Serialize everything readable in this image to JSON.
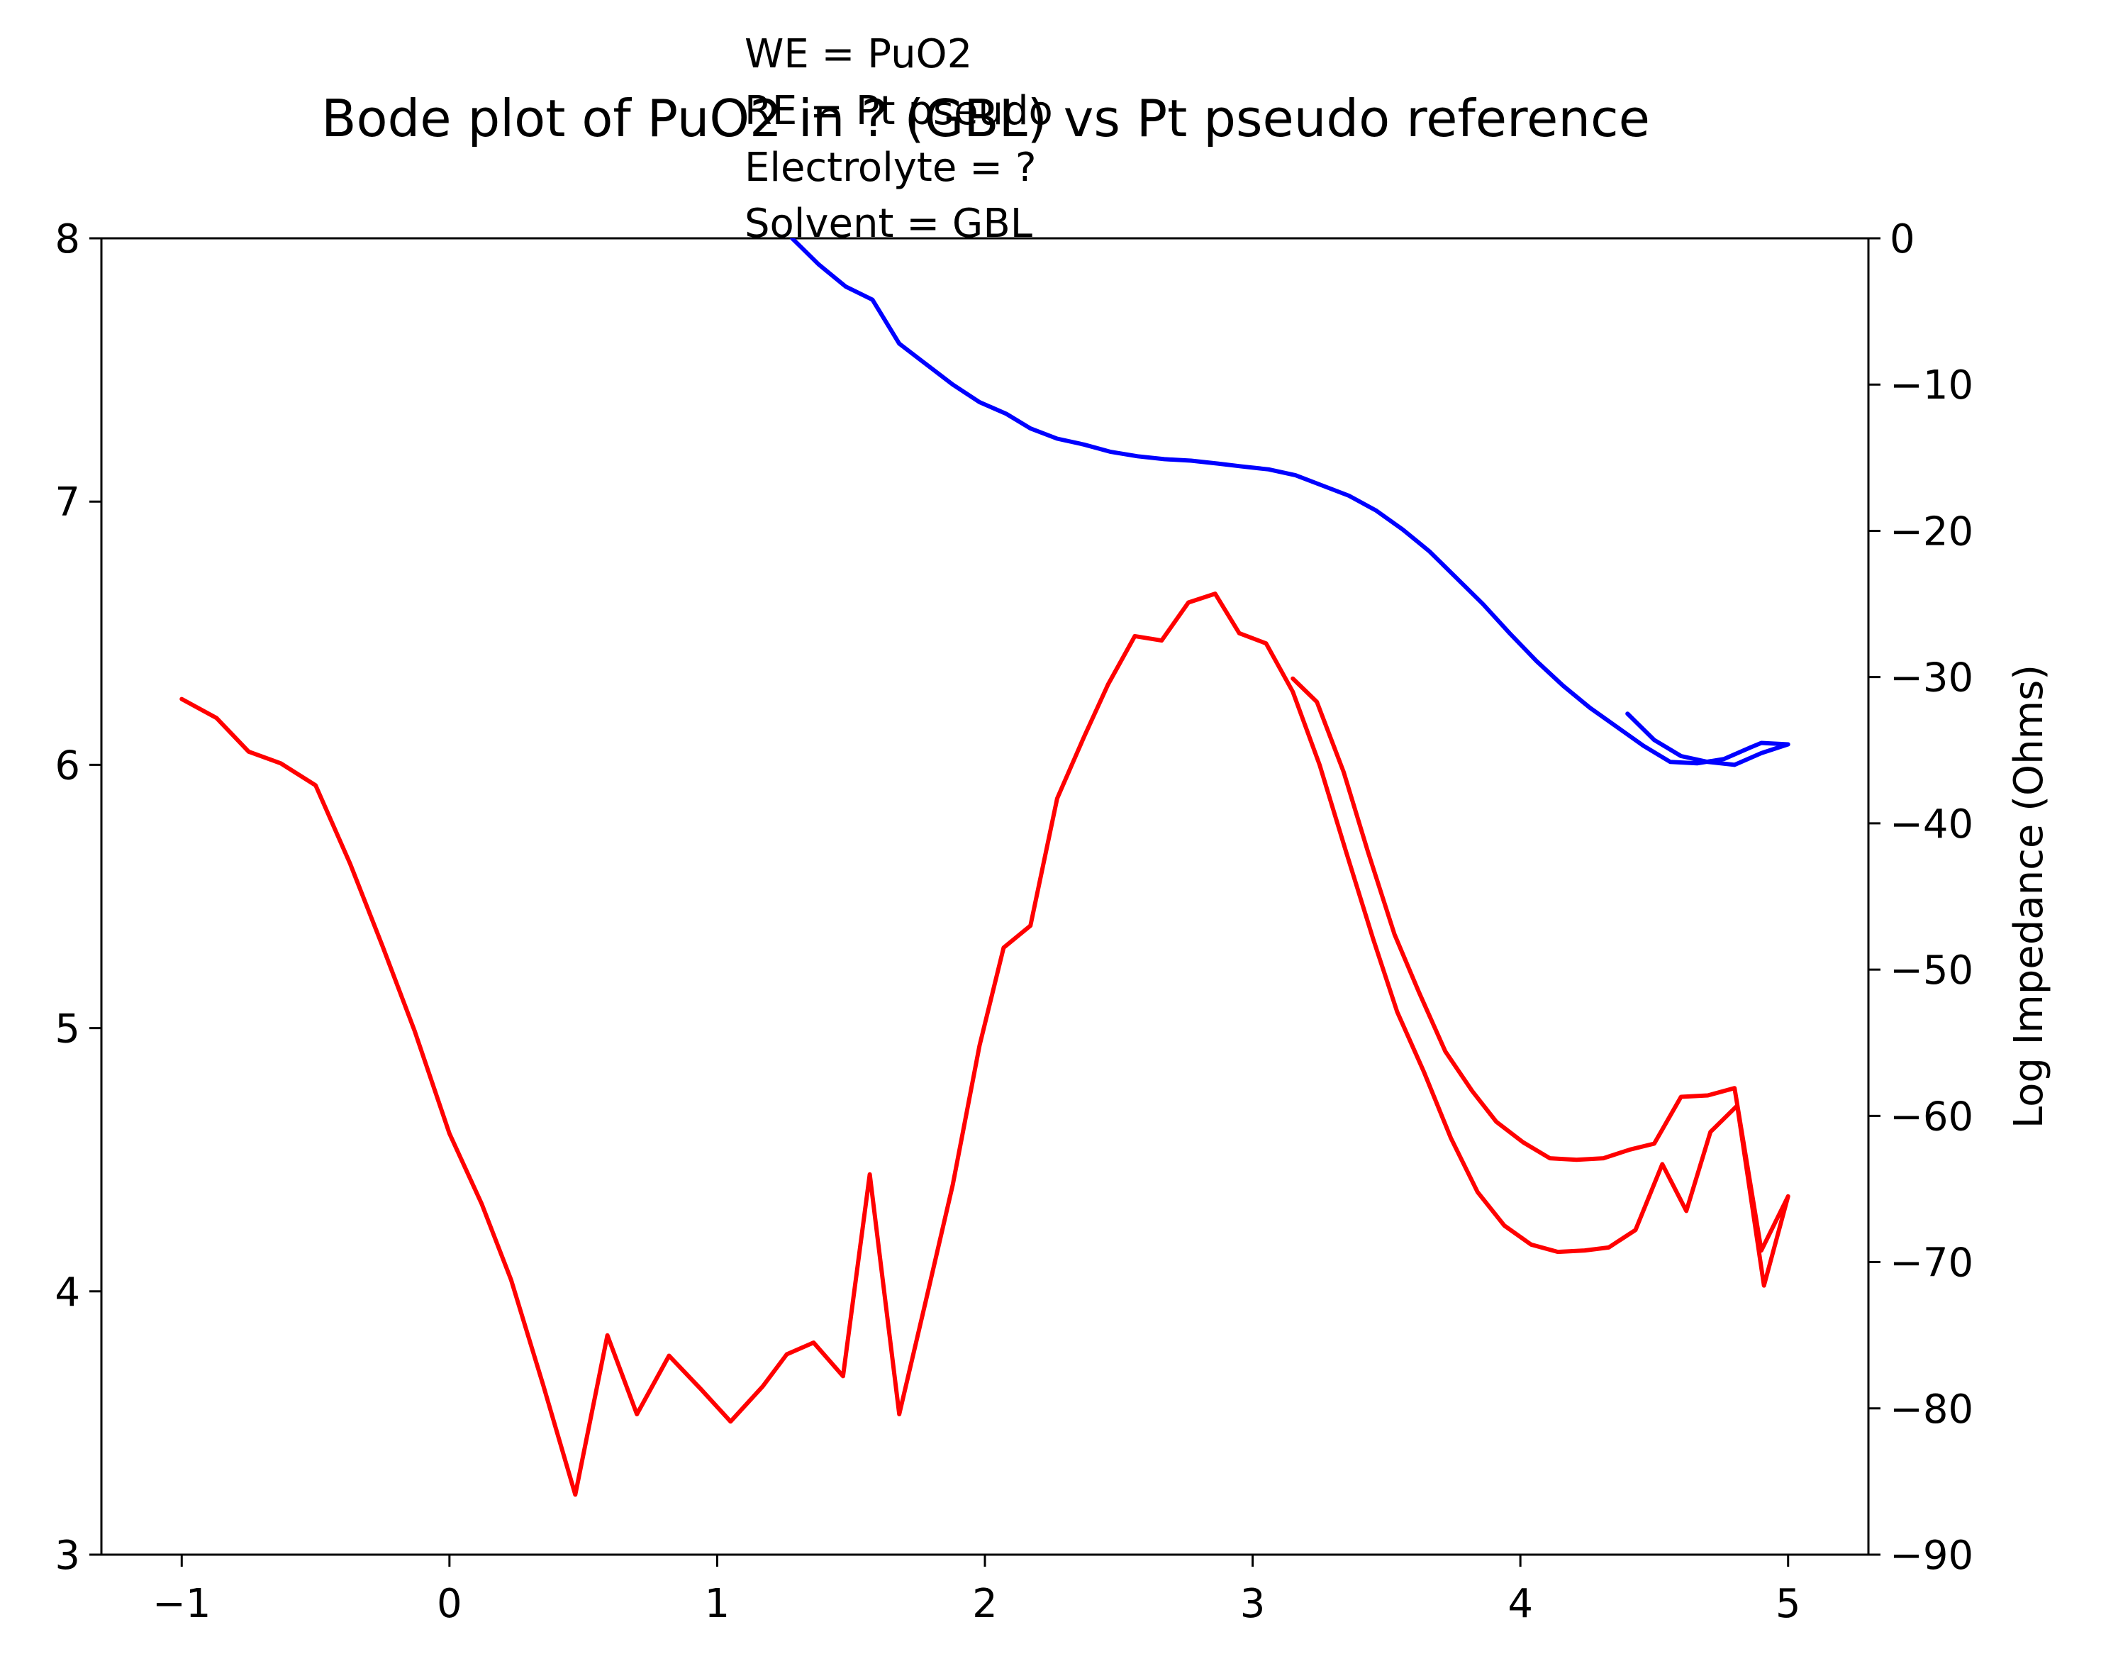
{
  "chart_data": {
    "type": "line",
    "title": "Bode plot of PuO2 in ? (GBL) vs Pt pseudo reference",
    "annotation": [
      "WE = PuO2",
      "RE = Pt pseudo",
      "Electrolyte = ?",
      "Solvent = GBL"
    ],
    "xlabel": "",
    "ylabel_left": "",
    "ylabel_right": "Log Impedance (Ohms)",
    "xlim": [
      -1.3,
      5.3
    ],
    "ylim_left": [
      3,
      8
    ],
    "ylim_right": [
      -90,
      0
    ],
    "x_ticks": [
      "−1",
      "0",
      "1",
      "2",
      "3",
      "4",
      "5"
    ],
    "y_left_ticks": [
      "3",
      "4",
      "5",
      "6",
      "7",
      "8"
    ],
    "y_right_ticks": [
      "−90",
      "−80",
      "−70",
      "−60",
      "−50",
      "−40",
      "−30",
      "−20",
      "−10",
      "0"
    ],
    "grid": false,
    "series": [
      {
        "axis": "right",
        "color": "#ff0000",
        "x": [
          -1.0,
          -0.87,
          -0.75,
          -0.63,
          -0.5,
          -0.37,
          -0.25,
          -0.13,
          0.0,
          0.12,
          0.23,
          0.35,
          0.47,
          0.59,
          0.7,
          0.82,
          0.94,
          1.05,
          1.17,
          1.26,
          1.36,
          1.47,
          1.57,
          1.68,
          1.78,
          1.88,
          1.98,
          2.07,
          2.17,
          2.27,
          2.37,
          2.46,
          2.56,
          2.66,
          2.76,
          2.86,
          2.95,
          3.05,
          3.15,
          3.25,
          3.35,
          3.45,
          3.54,
          3.64,
          3.74,
          3.84,
          3.94,
          4.04,
          4.14,
          4.24,
          4.33,
          4.43,
          4.53,
          4.62,
          4.71,
          4.81,
          4.91,
          5.0,
          4.9,
          4.8,
          4.7,
          4.6,
          4.5,
          4.41,
          4.31,
          4.21,
          4.11,
          4.01,
          3.91,
          3.82,
          3.72,
          3.62,
          3.53,
          3.43,
          3.34,
          3.24,
          3.15
        ],
        "values": [
          -31.5,
          -32.8,
          -35.1,
          -35.9,
          -37.4,
          -42.8,
          -48.4,
          -54.2,
          -61.2,
          -66.0,
          -71.2,
          -78.4,
          -85.9,
          -75.0,
          -80.4,
          -76.4,
          -78.7,
          -80.9,
          -78.5,
          -76.3,
          -75.5,
          -77.8,
          -64.0,
          -80.4,
          -72.6,
          -64.7,
          -55.2,
          -48.5,
          -47.0,
          -38.3,
          -34.1,
          -30.5,
          -27.2,
          -27.5,
          -24.9,
          -24.3,
          -27.0,
          -27.7,
          -31.0,
          -36.0,
          -42.0,
          -47.9,
          -52.9,
          -57.0,
          -61.5,
          -65.2,
          -67.5,
          -68.8,
          -69.3,
          -69.2,
          -69.0,
          -67.8,
          -63.3,
          -66.5,
          -61.1,
          -59.3,
          -71.6,
          -65.5,
          -69.2,
          -58.1,
          -58.6,
          -58.7,
          -61.9,
          -62.3,
          -62.9,
          -63.0,
          -62.9,
          -61.8,
          -60.4,
          -58.3,
          -55.6,
          -51.5,
          -47.6,
          -41.9,
          -36.5,
          -31.7,
          -30.1
        ]
      },
      {
        "axis": "right",
        "color": "#0000ff",
        "x": [
          1.28,
          1.38,
          1.48,
          1.58,
          1.68,
          1.78,
          1.88,
          1.98,
          2.08,
          2.17,
          2.27,
          2.37,
          2.47,
          2.57,
          2.67,
          2.77,
          2.87,
          2.96,
          3.06,
          3.16,
          3.26,
          3.36,
          3.46,
          3.56,
          3.66,
          3.76,
          3.86,
          3.96,
          4.06,
          4.16,
          4.26,
          4.36,
          4.46,
          4.56,
          4.66,
          4.76,
          4.86,
          4.9,
          5.0,
          4.9,
          4.8,
          4.7,
          4.6,
          4.5,
          4.4
        ],
        "values": [
          0.0,
          -1.8,
          -3.3,
          -4.2,
          -7.2,
          -8.6,
          -10.0,
          -11.2,
          -12.0,
          -13.0,
          -13.7,
          -14.1,
          -14.6,
          -14.9,
          -15.1,
          -15.2,
          -15.4,
          -15.6,
          -15.8,
          -16.2,
          -16.9,
          -17.6,
          -18.6,
          -19.9,
          -21.4,
          -23.2,
          -25.0,
          -27.0,
          -28.9,
          -30.6,
          -32.1,
          -33.4,
          -34.7,
          -35.8,
          -35.9,
          -35.6,
          -34.8,
          -34.5,
          -34.6,
          -35.2,
          -36.0,
          -35.8,
          -35.4,
          -34.3,
          -32.5
        ]
      }
    ]
  }
}
